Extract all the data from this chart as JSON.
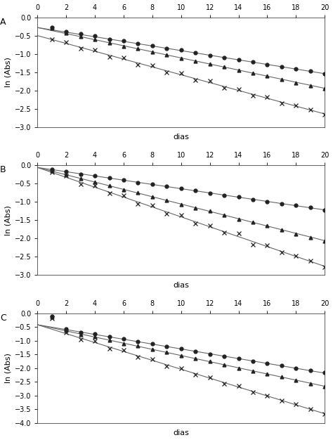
{
  "panels": [
    {
      "label": "A",
      "ylim": [
        -3,
        0
      ],
      "yticks": [
        0,
        -0.5,
        -1,
        -1.5,
        -2,
        -2.5,
        -3
      ],
      "series": [
        {
          "marker": "o",
          "y0": -0.28,
          "slope": -0.063,
          "noise": [
            0.07,
            0.02,
            0.01,
            0.02,
            0.0,
            0.01,
            0.0,
            0.01,
            0.0,
            0.01,
            0.0,
            -0.01,
            0.0,
            0.01,
            0.0,
            -0.01,
            0.0,
            0.01,
            0.01,
            0.0
          ]
        },
        {
          "marker": "^",
          "y0": -0.28,
          "slope": -0.083,
          "noise": [
            0.06,
            0.01,
            0.0,
            0.01,
            0.0,
            -0.01,
            0.01,
            -0.01,
            0.0,
            -0.01,
            0.0,
            0.01,
            0.0,
            -0.01,
            0.0,
            0.01,
            0.0,
            -0.01,
            -0.01,
            -0.01
          ]
        },
        {
          "marker": "x",
          "y0": -0.5,
          "slope": -0.107,
          "noise": [
            0.0,
            0.04,
            -0.04,
            0.04,
            -0.04,
            0.04,
            -0.04,
            0.04,
            -0.04,
            0.04,
            -0.04,
            0.04,
            -0.03,
            0.03,
            -0.03,
            0.03,
            -0.03,
            0.02,
            0.02,
            -0.02
          ]
        }
      ]
    },
    {
      "label": "B",
      "ylim": [
        -3,
        0
      ],
      "yticks": [
        0,
        -0.5,
        -1,
        -1.5,
        -2,
        -2.5,
        -3
      ],
      "series": [
        {
          "marker": "o",
          "y0": -0.06,
          "slope": -0.058,
          "noise": [
            0.01,
            0.01,
            -0.01,
            0.01,
            0.0,
            0.01,
            -0.01,
            0.01,
            0.0,
            0.01,
            0.0,
            -0.01,
            0.0,
            0.01,
            0.0,
            -0.01,
            0.0,
            0.01,
            0.01,
            0.0
          ]
        },
        {
          "marker": "^",
          "y0": -0.06,
          "slope": -0.1,
          "noise": [
            0.01,
            0.01,
            -0.01,
            0.01,
            0.0,
            -0.01,
            0.01,
            -0.01,
            0.0,
            -0.01,
            0.0,
            0.01,
            0.0,
            -0.01,
            0.0,
            0.01,
            0.0,
            -0.01,
            -0.01,
            -0.01
          ]
        },
        {
          "marker": "x",
          "y0": -0.06,
          "slope": -0.135,
          "noise": [
            0.01,
            0.05,
            -0.05,
            0.04,
            -0.04,
            0.04,
            -0.04,
            0.04,
            -0.04,
            0.04,
            -0.04,
            0.04,
            -0.03,
            0.09,
            -0.09,
            0.03,
            -0.03,
            0.02,
            0.02,
            -0.02
          ]
        }
      ]
    },
    {
      "label": "C",
      "ylim": [
        -4,
        0
      ],
      "yticks": [
        0,
        -0.5,
        -1,
        -1.5,
        -2,
        -2.5,
        -3,
        -3.5,
        -4
      ],
      "series": [
        {
          "marker": "o",
          "y0": -0.42,
          "slope": -0.088,
          "noise": [
            0.4,
            0.03,
            -0.01,
            0.02,
            0.0,
            0.01,
            -0.01,
            0.01,
            0.0,
            0.01,
            0.0,
            -0.01,
            0.0,
            0.01,
            0.0,
            -0.01,
            0.0,
            0.01,
            0.01,
            0.01
          ]
        },
        {
          "marker": "^",
          "y0": -0.42,
          "slope": -0.112,
          "noise": [
            0.4,
            0.03,
            -0.01,
            0.02,
            0.0,
            -0.01,
            0.01,
            -0.01,
            0.0,
            -0.01,
            0.0,
            0.01,
            0.0,
            -0.01,
            0.0,
            0.01,
            0.0,
            -0.01,
            -0.01,
            -0.01
          ]
        },
        {
          "marker": "x",
          "y0": -0.42,
          "slope": -0.162,
          "noise": [
            0.4,
            0.05,
            -0.05,
            0.05,
            -0.05,
            0.05,
            -0.05,
            0.05,
            -0.05,
            0.04,
            -0.04,
            0.03,
            -0.03,
            0.03,
            -0.03,
            0.02,
            -0.02,
            0.02,
            0.02,
            -0.02
          ]
        }
      ]
    }
  ],
  "x_days": [
    1,
    2,
    3,
    4,
    5,
    6,
    7,
    8,
    9,
    10,
    11,
    12,
    13,
    14,
    15,
    16,
    17,
    18,
    19,
    20
  ],
  "xlim": [
    0,
    20
  ],
  "xticks": [
    0,
    2,
    4,
    6,
    8,
    10,
    12,
    14,
    16,
    18,
    20
  ],
  "xlabel": "dias",
  "ylabel": "ln (Abs)",
  "marker_size": 3.5,
  "line_color": "#666666",
  "marker_color": "#222222",
  "background_color": "#ffffff",
  "tick_fontsize": 7,
  "label_fontsize": 8,
  "panel_label_fontsize": 9
}
